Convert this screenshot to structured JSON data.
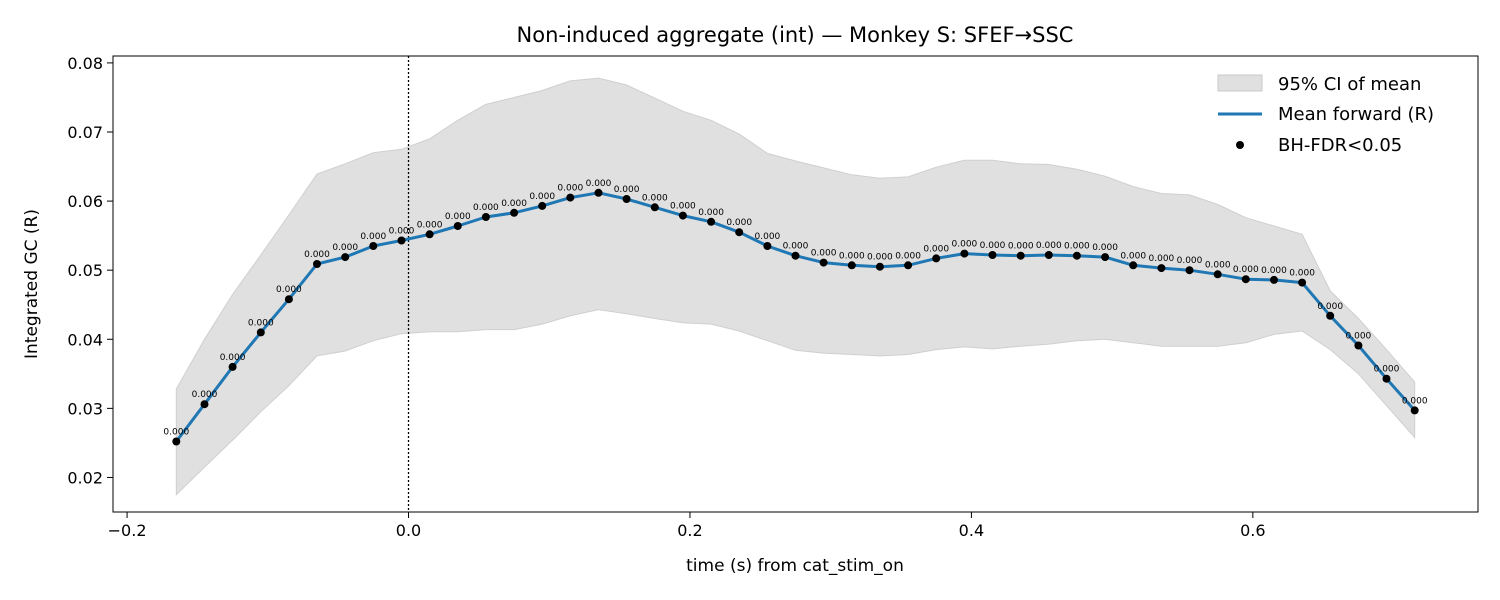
{
  "chart_data": {
    "type": "line",
    "title": "Non-induced aggregate (int) — Monkey S: SFEF→SSC",
    "xlabel": "time (s) from cat_stim_on",
    "ylabel": "Integrated GC (R)",
    "xlim": [
      -0.21,
      0.76
    ],
    "ylim": [
      0.015,
      0.081
    ],
    "xticks": [
      -0.2,
      0.0,
      0.2,
      0.4,
      0.6
    ],
    "xtick_labels": [
      "−0.2",
      "0.0",
      "0.2",
      "0.4",
      "0.6"
    ],
    "yticks": [
      0.02,
      0.03,
      0.04,
      0.05,
      0.06,
      0.07,
      0.08
    ],
    "ytick_labels": [
      "0.02",
      "0.03",
      "0.04",
      "0.05",
      "0.06",
      "0.07",
      "0.08"
    ],
    "vline_x": 0.0,
    "legend": {
      "placement": "top-right",
      "entries": [
        "95% CI of mean",
        "Mean forward (R)",
        "BH-FDR<0.05"
      ]
    },
    "colors": {
      "line": "#1f77b4",
      "ci": "#e0e0e0",
      "points": "#000000"
    },
    "x": [
      -0.165,
      -0.145,
      -0.125,
      -0.105,
      -0.085,
      -0.065,
      -0.045,
      -0.025,
      -0.005,
      0.015,
      0.035,
      0.055,
      0.075,
      0.095,
      0.115,
      0.135,
      0.155,
      0.175,
      0.195,
      0.215,
      0.235,
      0.255,
      0.275,
      0.295,
      0.315,
      0.335,
      0.355,
      0.375,
      0.395,
      0.415,
      0.435,
      0.455,
      0.475,
      0.495,
      0.515,
      0.535,
      0.555,
      0.575,
      0.595,
      0.615,
      0.635,
      0.655,
      0.675,
      0.695,
      0.715
    ],
    "series": [
      {
        "name": "Mean forward (R)",
        "values": [
          0.0252,
          0.0306,
          0.036,
          0.041,
          0.0458,
          0.0509,
          0.0519,
          0.0535,
          0.0543,
          0.0552,
          0.0564,
          0.0577,
          0.0583,
          0.0593,
          0.0605,
          0.0612,
          0.0603,
          0.0591,
          0.0579,
          0.057,
          0.0555,
          0.0535,
          0.0521,
          0.0511,
          0.0507,
          0.0505,
          0.0507,
          0.0517,
          0.0524,
          0.0522,
          0.0521,
          0.0522,
          0.0521,
          0.0519,
          0.0507,
          0.0503,
          0.05,
          0.0494,
          0.0487,
          0.0486,
          0.0482,
          0.0434,
          0.0391,
          0.0343,
          0.0297
        ]
      }
    ],
    "ci_upper": [
      0.0328,
      0.04,
      0.0465,
      0.0522,
      0.058,
      0.0639,
      0.0654,
      0.067,
      0.0675,
      0.069,
      0.0717,
      0.074,
      0.075,
      0.076,
      0.0774,
      0.0778,
      0.0768,
      0.0749,
      0.073,
      0.0717,
      0.0697,
      0.0669,
      0.0658,
      0.0648,
      0.0638,
      0.0633,
      0.0635,
      0.0649,
      0.0659,
      0.0659,
      0.0654,
      0.0653,
      0.0646,
      0.0636,
      0.0621,
      0.0611,
      0.0609,
      0.0595,
      0.0576,
      0.0564,
      0.0552,
      0.047,
      0.043,
      0.0385,
      0.0338
    ],
    "ci_lower": [
      0.0175,
      0.0215,
      0.0254,
      0.0295,
      0.0333,
      0.0376,
      0.0383,
      0.0398,
      0.0408,
      0.0411,
      0.0411,
      0.0414,
      0.0414,
      0.0422,
      0.0434,
      0.0443,
      0.0437,
      0.043,
      0.0424,
      0.0422,
      0.0412,
      0.0398,
      0.0384,
      0.038,
      0.0378,
      0.0376,
      0.0378,
      0.0385,
      0.0389,
      0.0386,
      0.039,
      0.0393,
      0.0398,
      0.04,
      0.0395,
      0.039,
      0.039,
      0.039,
      0.0395,
      0.0407,
      0.0412,
      0.0385,
      0.035,
      0.0304,
      0.0258
    ],
    "point_labels": [
      "0.000",
      "0.000",
      "0.000",
      "0.000",
      "0.000",
      "0.000",
      "0.000",
      "0.000",
      "0.000",
      "0.000",
      "0.000",
      "0.000",
      "0.000",
      "0.000",
      "0.000",
      "0.000",
      "0.000",
      "0.000",
      "0.000",
      "0.000",
      "0.000",
      "0.000",
      "0.000",
      "0.000",
      "0.000",
      "0.000",
      "0.000",
      "0.000",
      "0.000",
      "0.000",
      "0.000",
      "0.000",
      "0.000",
      "0.000",
      "0.000",
      "0.000",
      "0.000",
      "0.000",
      "0.000",
      "0.000",
      "0.000",
      "0.000",
      "0.000",
      "0.000",
      "0.000"
    ]
  }
}
